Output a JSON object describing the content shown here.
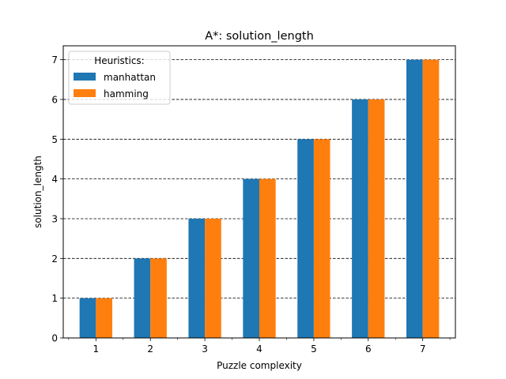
{
  "chart_data": {
    "type": "bar",
    "title": "A*: solution_length",
    "xlabel": "Puzzle complexity",
    "ylabel": "solution_length",
    "categories": [
      "1",
      "2",
      "3",
      "4",
      "5",
      "6",
      "7"
    ],
    "series": [
      {
        "name": "manhattan",
        "values": [
          1,
          2,
          3,
          4,
          5,
          6,
          7
        ],
        "color": "#1f77b4"
      },
      {
        "name": "hamming",
        "values": [
          1,
          2,
          3,
          4,
          5,
          6,
          7
        ],
        "color": "#ff7f0e"
      }
    ],
    "ylim": [
      0,
      7.35
    ],
    "yticks": [
      "0",
      "1",
      "2",
      "3",
      "4",
      "5",
      "6",
      "7"
    ],
    "grid": "horizontal dashed",
    "legend": {
      "title": "Heuristics:",
      "position": "upper-left"
    }
  }
}
